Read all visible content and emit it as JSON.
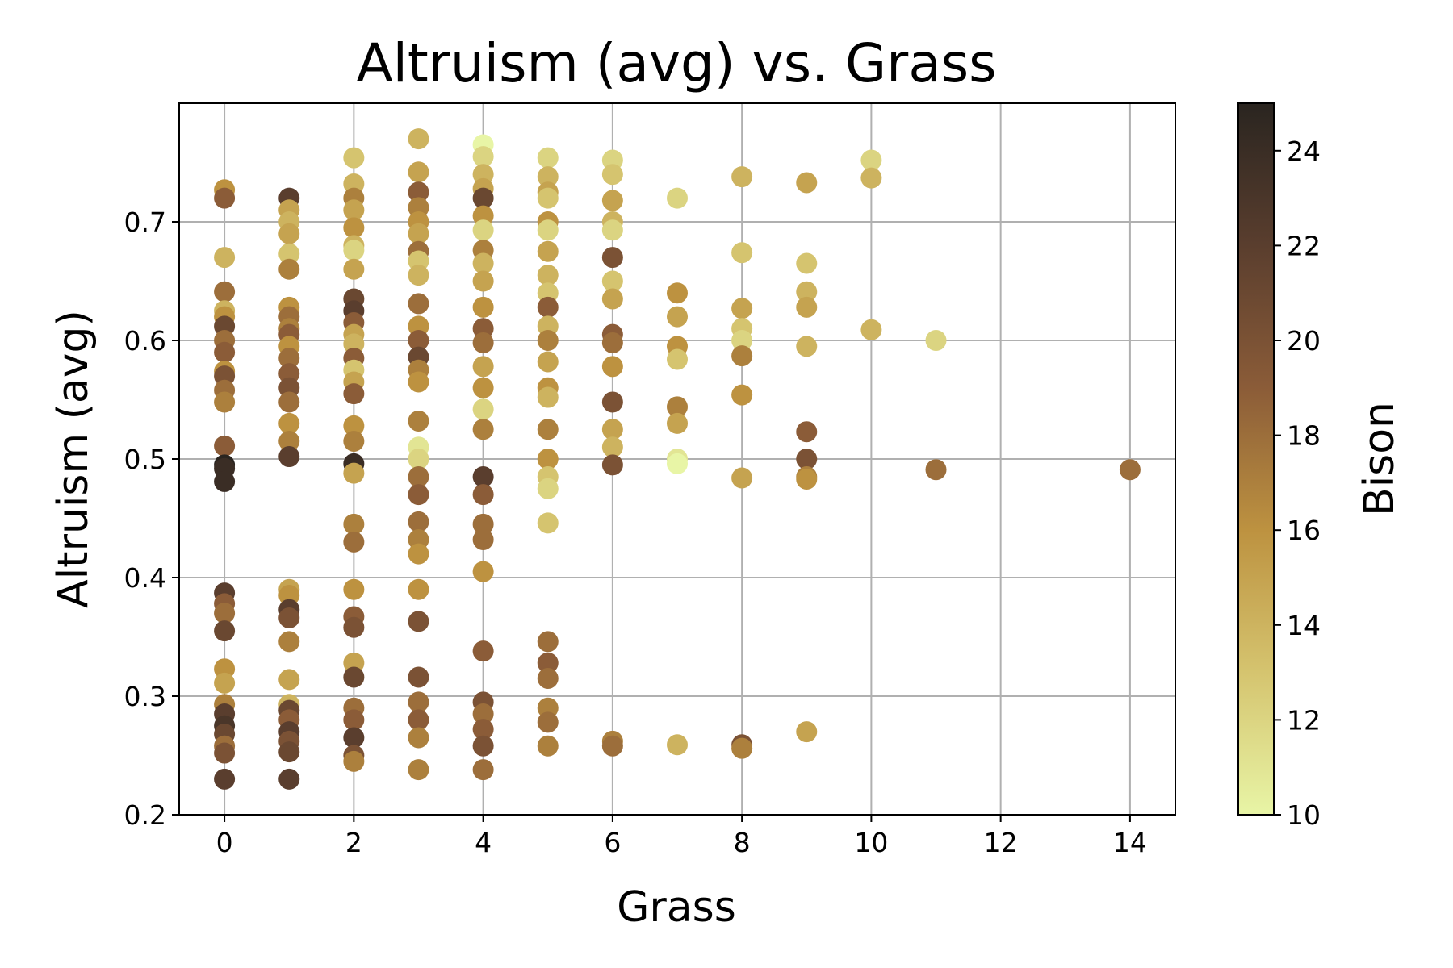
{
  "chart_data": {
    "type": "scatter",
    "title": "Altruism (avg) vs. Grass",
    "xlabel": "Grass",
    "ylabel": "Altruism (avg)",
    "xlim": [
      -0.7,
      14.7
    ],
    "ylim": [
      0.2,
      0.8
    ],
    "xticks": [
      0,
      2,
      4,
      6,
      8,
      10,
      12,
      14
    ],
    "yticks": [
      0.2,
      0.3,
      0.4,
      0.5,
      0.6,
      0.7
    ],
    "grid": true,
    "colorbar": {
      "label": "Bison",
      "range": [
        10,
        25
      ],
      "ticks": [
        10,
        12,
        14,
        16,
        18,
        20,
        22,
        24
      ],
      "colors": [
        "#e8f5a6",
        "#d5c46f",
        "#bd9240",
        "#8b5c38",
        "#5a3e2e",
        "#2a2520"
      ]
    },
    "points": [
      {
        "x": 0,
        "y": 0.727,
        "c": 16
      },
      {
        "x": 0,
        "y": 0.72,
        "c": 19
      },
      {
        "x": 0,
        "y": 0.67,
        "c": 14
      },
      {
        "x": 0,
        "y": 0.641,
        "c": 18
      },
      {
        "x": 0,
        "y": 0.625,
        "c": 14
      },
      {
        "x": 0,
        "y": 0.62,
        "c": 16
      },
      {
        "x": 0,
        "y": 0.612,
        "c": 21
      },
      {
        "x": 0,
        "y": 0.6,
        "c": 18
      },
      {
        "x": 0,
        "y": 0.59,
        "c": 19
      },
      {
        "x": 0,
        "y": 0.574,
        "c": 16
      },
      {
        "x": 0,
        "y": 0.57,
        "c": 20
      },
      {
        "x": 0,
        "y": 0.558,
        "c": 18
      },
      {
        "x": 0,
        "y": 0.548,
        "c": 17
      },
      {
        "x": 0,
        "y": 0.511,
        "c": 19
      },
      {
        "x": 0,
        "y": 0.495,
        "c": 25
      },
      {
        "x": 0,
        "y": 0.492,
        "c": 24
      },
      {
        "x": 0,
        "y": 0.481,
        "c": 24
      },
      {
        "x": 0,
        "y": 0.387,
        "c": 22
      },
      {
        "x": 0,
        "y": 0.378,
        "c": 19
      },
      {
        "x": 0,
        "y": 0.37,
        "c": 18
      },
      {
        "x": 0,
        "y": 0.355,
        "c": 21
      },
      {
        "x": 0,
        "y": 0.323,
        "c": 16
      },
      {
        "x": 0,
        "y": 0.311,
        "c": 15
      },
      {
        "x": 0,
        "y": 0.293,
        "c": 17
      },
      {
        "x": 0,
        "y": 0.285,
        "c": 22
      },
      {
        "x": 0,
        "y": 0.275,
        "c": 23
      },
      {
        "x": 0,
        "y": 0.268,
        "c": 21
      },
      {
        "x": 0,
        "y": 0.258,
        "c": 18
      },
      {
        "x": 0,
        "y": 0.252,
        "c": 20
      },
      {
        "x": 0,
        "y": 0.23,
        "c": 22
      },
      {
        "x": 1,
        "y": 0.72,
        "c": 22
      },
      {
        "x": 1,
        "y": 0.71,
        "c": 15
      },
      {
        "x": 1,
        "y": 0.7,
        "c": 14
      },
      {
        "x": 1,
        "y": 0.69,
        "c": 15
      },
      {
        "x": 1,
        "y": 0.673,
        "c": 13
      },
      {
        "x": 1,
        "y": 0.66,
        "c": 17
      },
      {
        "x": 1,
        "y": 0.628,
        "c": 16
      },
      {
        "x": 1,
        "y": 0.62,
        "c": 18
      },
      {
        "x": 1,
        "y": 0.61,
        "c": 17
      },
      {
        "x": 1,
        "y": 0.605,
        "c": 19
      },
      {
        "x": 1,
        "y": 0.595,
        "c": 16
      },
      {
        "x": 1,
        "y": 0.585,
        "c": 18
      },
      {
        "x": 1,
        "y": 0.572,
        "c": 19
      },
      {
        "x": 1,
        "y": 0.56,
        "c": 20
      },
      {
        "x": 1,
        "y": 0.548,
        "c": 18
      },
      {
        "x": 1,
        "y": 0.53,
        "c": 16
      },
      {
        "x": 1,
        "y": 0.515,
        "c": 17
      },
      {
        "x": 1,
        "y": 0.502,
        "c": 22
      },
      {
        "x": 1,
        "y": 0.39,
        "c": 15
      },
      {
        "x": 1,
        "y": 0.385,
        "c": 16
      },
      {
        "x": 1,
        "y": 0.373,
        "c": 22
      },
      {
        "x": 1,
        "y": 0.366,
        "c": 20
      },
      {
        "x": 1,
        "y": 0.346,
        "c": 17
      },
      {
        "x": 1,
        "y": 0.314,
        "c": 15
      },
      {
        "x": 1,
        "y": 0.293,
        "c": 14
      },
      {
        "x": 1,
        "y": 0.288,
        "c": 21
      },
      {
        "x": 1,
        "y": 0.28,
        "c": 19
      },
      {
        "x": 1,
        "y": 0.27,
        "c": 22
      },
      {
        "x": 1,
        "y": 0.262,
        "c": 20
      },
      {
        "x": 1,
        "y": 0.253,
        "c": 21
      },
      {
        "x": 1,
        "y": 0.23,
        "c": 22
      },
      {
        "x": 2,
        "y": 0.754,
        "c": 13
      },
      {
        "x": 2,
        "y": 0.732,
        "c": 14
      },
      {
        "x": 2,
        "y": 0.72,
        "c": 17
      },
      {
        "x": 2,
        "y": 0.71,
        "c": 15
      },
      {
        "x": 2,
        "y": 0.695,
        "c": 16
      },
      {
        "x": 2,
        "y": 0.68,
        "c": 14
      },
      {
        "x": 2,
        "y": 0.676,
        "c": 12
      },
      {
        "x": 2,
        "y": 0.66,
        "c": 15
      },
      {
        "x": 2,
        "y": 0.635,
        "c": 21
      },
      {
        "x": 2,
        "y": 0.625,
        "c": 22
      },
      {
        "x": 2,
        "y": 0.615,
        "c": 19
      },
      {
        "x": 2,
        "y": 0.605,
        "c": 15
      },
      {
        "x": 2,
        "y": 0.597,
        "c": 14
      },
      {
        "x": 2,
        "y": 0.585,
        "c": 19
      },
      {
        "x": 2,
        "y": 0.575,
        "c": 13
      },
      {
        "x": 2,
        "y": 0.565,
        "c": 15
      },
      {
        "x": 2,
        "y": 0.555,
        "c": 19
      },
      {
        "x": 2,
        "y": 0.528,
        "c": 16
      },
      {
        "x": 2,
        "y": 0.515,
        "c": 17
      },
      {
        "x": 2,
        "y": 0.496,
        "c": 24
      },
      {
        "x": 2,
        "y": 0.488,
        "c": 15
      },
      {
        "x": 2,
        "y": 0.445,
        "c": 17
      },
      {
        "x": 2,
        "y": 0.43,
        "c": 18
      },
      {
        "x": 2,
        "y": 0.39,
        "c": 16
      },
      {
        "x": 2,
        "y": 0.367,
        "c": 19
      },
      {
        "x": 2,
        "y": 0.358,
        "c": 20
      },
      {
        "x": 2,
        "y": 0.328,
        "c": 15
      },
      {
        "x": 2,
        "y": 0.316,
        "c": 21
      },
      {
        "x": 2,
        "y": 0.29,
        "c": 18
      },
      {
        "x": 2,
        "y": 0.28,
        "c": 19
      },
      {
        "x": 2,
        "y": 0.265,
        "c": 22
      },
      {
        "x": 2,
        "y": 0.25,
        "c": 20
      },
      {
        "x": 2,
        "y": 0.245,
        "c": 17
      },
      {
        "x": 3,
        "y": 0.77,
        "c": 14
      },
      {
        "x": 3,
        "y": 0.742,
        "c": 15
      },
      {
        "x": 3,
        "y": 0.725,
        "c": 19
      },
      {
        "x": 3,
        "y": 0.712,
        "c": 17
      },
      {
        "x": 3,
        "y": 0.7,
        "c": 16
      },
      {
        "x": 3,
        "y": 0.69,
        "c": 15
      },
      {
        "x": 3,
        "y": 0.675,
        "c": 18
      },
      {
        "x": 3,
        "y": 0.667,
        "c": 13
      },
      {
        "x": 3,
        "y": 0.655,
        "c": 14
      },
      {
        "x": 3,
        "y": 0.631,
        "c": 18
      },
      {
        "x": 3,
        "y": 0.612,
        "c": 16
      },
      {
        "x": 3,
        "y": 0.6,
        "c": 19
      },
      {
        "x": 3,
        "y": 0.586,
        "c": 21
      },
      {
        "x": 3,
        "y": 0.575,
        "c": 17
      },
      {
        "x": 3,
        "y": 0.565,
        "c": 16
      },
      {
        "x": 3,
        "y": 0.532,
        "c": 17
      },
      {
        "x": 3,
        "y": 0.51,
        "c": 11
      },
      {
        "x": 3,
        "y": 0.5,
        "c": 12
      },
      {
        "x": 3,
        "y": 0.485,
        "c": 18
      },
      {
        "x": 3,
        "y": 0.47,
        "c": 19
      },
      {
        "x": 3,
        "y": 0.447,
        "c": 18
      },
      {
        "x": 3,
        "y": 0.432,
        "c": 17
      },
      {
        "x": 3,
        "y": 0.42,
        "c": 16
      },
      {
        "x": 3,
        "y": 0.39,
        "c": 16
      },
      {
        "x": 3,
        "y": 0.363,
        "c": 20
      },
      {
        "x": 3,
        "y": 0.316,
        "c": 20
      },
      {
        "x": 3,
        "y": 0.295,
        "c": 18
      },
      {
        "x": 3,
        "y": 0.28,
        "c": 19
      },
      {
        "x": 3,
        "y": 0.265,
        "c": 17
      },
      {
        "x": 3,
        "y": 0.238,
        "c": 17
      },
      {
        "x": 4,
        "y": 0.765,
        "c": 10
      },
      {
        "x": 4,
        "y": 0.755,
        "c": 12
      },
      {
        "x": 4,
        "y": 0.74,
        "c": 14
      },
      {
        "x": 4,
        "y": 0.728,
        "c": 15
      },
      {
        "x": 4,
        "y": 0.72,
        "c": 21
      },
      {
        "x": 4,
        "y": 0.705,
        "c": 16
      },
      {
        "x": 4,
        "y": 0.693,
        "c": 12
      },
      {
        "x": 4,
        "y": 0.676,
        "c": 17
      },
      {
        "x": 4,
        "y": 0.665,
        "c": 14
      },
      {
        "x": 4,
        "y": 0.65,
        "c": 15
      },
      {
        "x": 4,
        "y": 0.628,
        "c": 16
      },
      {
        "x": 4,
        "y": 0.61,
        "c": 19
      },
      {
        "x": 4,
        "y": 0.598,
        "c": 18
      },
      {
        "x": 4,
        "y": 0.578,
        "c": 15
      },
      {
        "x": 4,
        "y": 0.56,
        "c": 16
      },
      {
        "x": 4,
        "y": 0.542,
        "c": 12
      },
      {
        "x": 4,
        "y": 0.525,
        "c": 17
      },
      {
        "x": 4,
        "y": 0.485,
        "c": 22
      },
      {
        "x": 4,
        "y": 0.47,
        "c": 19
      },
      {
        "x": 4,
        "y": 0.445,
        "c": 18
      },
      {
        "x": 4,
        "y": 0.432,
        "c": 18
      },
      {
        "x": 4,
        "y": 0.405,
        "c": 16
      },
      {
        "x": 4,
        "y": 0.338,
        "c": 19
      },
      {
        "x": 4,
        "y": 0.295,
        "c": 20
      },
      {
        "x": 4,
        "y": 0.285,
        "c": 18
      },
      {
        "x": 4,
        "y": 0.272,
        "c": 19
      },
      {
        "x": 4,
        "y": 0.258,
        "c": 20
      },
      {
        "x": 4,
        "y": 0.238,
        "c": 18
      },
      {
        "x": 5,
        "y": 0.754,
        "c": 12
      },
      {
        "x": 5,
        "y": 0.738,
        "c": 14
      },
      {
        "x": 5,
        "y": 0.725,
        "c": 15
      },
      {
        "x": 5,
        "y": 0.72,
        "c": 13
      },
      {
        "x": 5,
        "y": 0.7,
        "c": 16
      },
      {
        "x": 5,
        "y": 0.693,
        "c": 12
      },
      {
        "x": 5,
        "y": 0.675,
        "c": 15
      },
      {
        "x": 5,
        "y": 0.655,
        "c": 14
      },
      {
        "x": 5,
        "y": 0.64,
        "c": 13
      },
      {
        "x": 5,
        "y": 0.628,
        "c": 19
      },
      {
        "x": 5,
        "y": 0.612,
        "c": 14
      },
      {
        "x": 5,
        "y": 0.6,
        "c": 17
      },
      {
        "x": 5,
        "y": 0.582,
        "c": 15
      },
      {
        "x": 5,
        "y": 0.56,
        "c": 16
      },
      {
        "x": 5,
        "y": 0.552,
        "c": 14
      },
      {
        "x": 5,
        "y": 0.525,
        "c": 17
      },
      {
        "x": 5,
        "y": 0.5,
        "c": 16
      },
      {
        "x": 5,
        "y": 0.485,
        "c": 13
      },
      {
        "x": 5,
        "y": 0.475,
        "c": 12
      },
      {
        "x": 5,
        "y": 0.446,
        "c": 13
      },
      {
        "x": 5,
        "y": 0.346,
        "c": 18
      },
      {
        "x": 5,
        "y": 0.328,
        "c": 19
      },
      {
        "x": 5,
        "y": 0.315,
        "c": 18
      },
      {
        "x": 5,
        "y": 0.29,
        "c": 17
      },
      {
        "x": 5,
        "y": 0.278,
        "c": 18
      },
      {
        "x": 5,
        "y": 0.258,
        "c": 17
      },
      {
        "x": 6,
        "y": 0.752,
        "c": 12
      },
      {
        "x": 6,
        "y": 0.74,
        "c": 13
      },
      {
        "x": 6,
        "y": 0.718,
        "c": 15
      },
      {
        "x": 6,
        "y": 0.7,
        "c": 14
      },
      {
        "x": 6,
        "y": 0.693,
        "c": 12
      },
      {
        "x": 6,
        "y": 0.67,
        "c": 20
      },
      {
        "x": 6,
        "y": 0.65,
        "c": 13
      },
      {
        "x": 6,
        "y": 0.635,
        "c": 15
      },
      {
        "x": 6,
        "y": 0.605,
        "c": 19
      },
      {
        "x": 6,
        "y": 0.598,
        "c": 18
      },
      {
        "x": 6,
        "y": 0.578,
        "c": 16
      },
      {
        "x": 6,
        "y": 0.548,
        "c": 20
      },
      {
        "x": 6,
        "y": 0.525,
        "c": 15
      },
      {
        "x": 6,
        "y": 0.51,
        "c": 14
      },
      {
        "x": 6,
        "y": 0.495,
        "c": 20
      },
      {
        "x": 6,
        "y": 0.262,
        "c": 17
      },
      {
        "x": 6,
        "y": 0.258,
        "c": 18
      },
      {
        "x": 7,
        "y": 0.72,
        "c": 12
      },
      {
        "x": 7,
        "y": 0.64,
        "c": 16
      },
      {
        "x": 7,
        "y": 0.62,
        "c": 15
      },
      {
        "x": 7,
        "y": 0.595,
        "c": 16
      },
      {
        "x": 7,
        "y": 0.584,
        "c": 13
      },
      {
        "x": 7,
        "y": 0.544,
        "c": 17
      },
      {
        "x": 7,
        "y": 0.53,
        "c": 15
      },
      {
        "x": 7,
        "y": 0.5,
        "c": 11
      },
      {
        "x": 7,
        "y": 0.496,
        "c": 10
      },
      {
        "x": 7,
        "y": 0.259,
        "c": 14
      },
      {
        "x": 8,
        "y": 0.738,
        "c": 14
      },
      {
        "x": 8,
        "y": 0.674,
        "c": 13
      },
      {
        "x": 8,
        "y": 0.627,
        "c": 15
      },
      {
        "x": 8,
        "y": 0.61,
        "c": 13
      },
      {
        "x": 8,
        "y": 0.6,
        "c": 12
      },
      {
        "x": 8,
        "y": 0.587,
        "c": 17
      },
      {
        "x": 8,
        "y": 0.554,
        "c": 16
      },
      {
        "x": 8,
        "y": 0.484,
        "c": 15
      },
      {
        "x": 8,
        "y": 0.259,
        "c": 20
      },
      {
        "x": 8,
        "y": 0.256,
        "c": 17
      },
      {
        "x": 9,
        "y": 0.733,
        "c": 15
      },
      {
        "x": 9,
        "y": 0.665,
        "c": 13
      },
      {
        "x": 9,
        "y": 0.641,
        "c": 14
      },
      {
        "x": 9,
        "y": 0.628,
        "c": 15
      },
      {
        "x": 9,
        "y": 0.595,
        "c": 14
      },
      {
        "x": 9,
        "y": 0.523,
        "c": 19
      },
      {
        "x": 9,
        "y": 0.5,
        "c": 20
      },
      {
        "x": 9,
        "y": 0.485,
        "c": 17
      },
      {
        "x": 9,
        "y": 0.483,
        "c": 16
      },
      {
        "x": 9,
        "y": 0.27,
        "c": 15
      },
      {
        "x": 10,
        "y": 0.752,
        "c": 12
      },
      {
        "x": 10,
        "y": 0.737,
        "c": 14
      },
      {
        "x": 10,
        "y": 0.609,
        "c": 14
      },
      {
        "x": 11,
        "y": 0.6,
        "c": 12
      },
      {
        "x": 11,
        "y": 0.491,
        "c": 18
      },
      {
        "x": 14,
        "y": 0.491,
        "c": 18
      }
    ]
  }
}
